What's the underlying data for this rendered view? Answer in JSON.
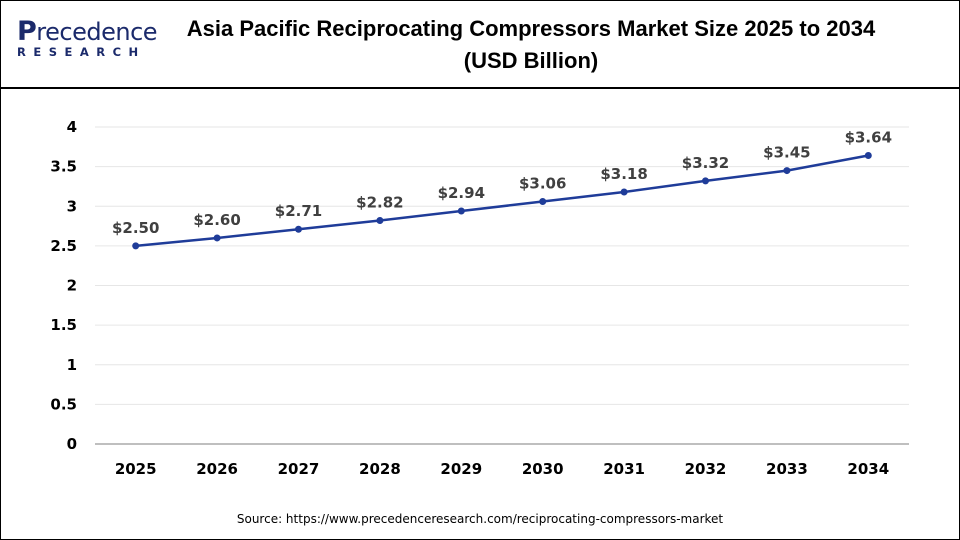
{
  "logo": {
    "brand": "Precedence",
    "sub": "RESEARCH"
  },
  "title_line1": "Asia Pacific Reciprocating Compressors Market Size 2025 to 2034",
  "title_line2": "(USD Billion)",
  "source": "Source: https://www.precedenceresearch.com/reciprocating-compressors-market",
  "chart_data": {
    "type": "line",
    "title": "Asia Pacific Reciprocating Compressors Market Size 2025 to 2034 (USD Billion)",
    "categories": [
      "2025",
      "2026",
      "2027",
      "2028",
      "2029",
      "2030",
      "2031",
      "2032",
      "2033",
      "2034"
    ],
    "values": [
      2.5,
      2.6,
      2.71,
      2.82,
      2.94,
      3.06,
      3.18,
      3.32,
      3.45,
      3.64
    ],
    "data_labels": [
      "$2.50",
      "$2.60",
      "$2.71",
      "$2.82",
      "$2.94",
      "$3.06",
      "$3.18",
      "$3.32",
      "$3.45",
      "$3.64"
    ],
    "yticks": [
      "0",
      "0.5",
      "1",
      "1.5",
      "2",
      "2.5",
      "3",
      "3.5",
      "4"
    ],
    "ylim": [
      0,
      4
    ],
    "grid": true,
    "line_color": "#1f3c99"
  }
}
